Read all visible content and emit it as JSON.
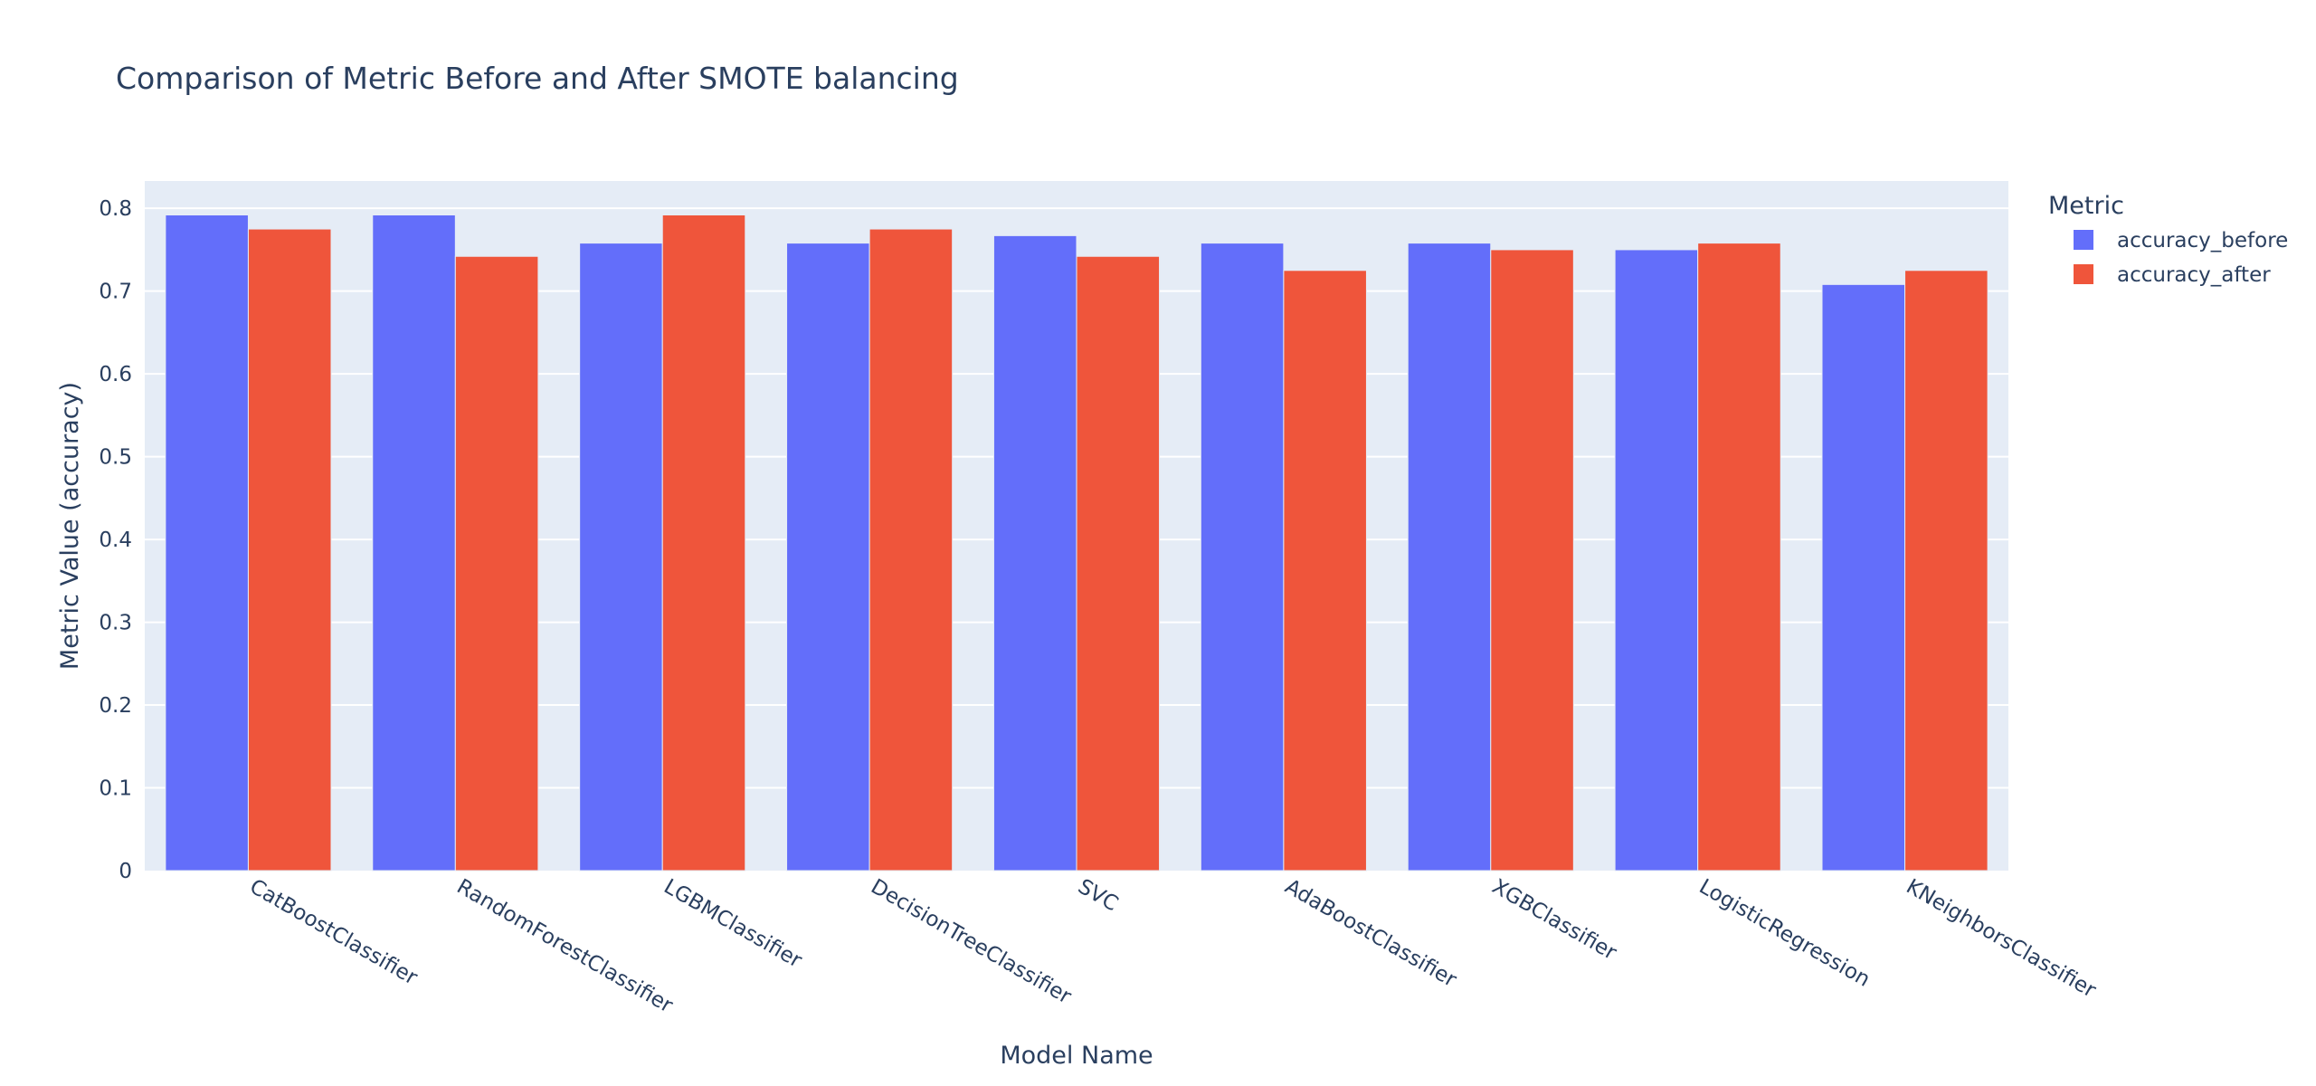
{
  "chart_data": {
    "type": "bar",
    "title": "Comparison of Metric Before and After SMOTE balancing",
    "xlabel": "Model Name",
    "ylabel": "Metric Value (accuracy)",
    "ylim": [
      0,
      0.833
    ],
    "yticks": [
      0,
      0.1,
      0.2,
      0.3,
      0.4,
      0.5,
      0.6,
      0.7,
      0.8
    ],
    "ytick_labels": [
      "0",
      "0.1",
      "0.2",
      "0.3",
      "0.4",
      "0.5",
      "0.6",
      "0.7",
      "0.8"
    ],
    "grid": true,
    "barmode": "group",
    "categories": [
      "CatBoostClassifier",
      "RandomForestClassifier",
      "LGBMClassifier",
      "DecisionTreeClassifier",
      "SVC",
      "AdaBoostClassifier",
      "XGBClassifier",
      "LogisticRegression",
      "KNeighborsClassifier"
    ],
    "legend": {
      "title": "Metric",
      "placement": "top-right"
    },
    "series": [
      {
        "name": "accuracy_before",
        "color": "#636efa",
        "values": [
          0.792,
          0.792,
          0.758,
          0.758,
          0.767,
          0.758,
          0.758,
          0.75,
          0.708
        ]
      },
      {
        "name": "accuracy_after",
        "color": "#ef553b",
        "values": [
          0.775,
          0.742,
          0.792,
          0.775,
          0.742,
          0.725,
          0.75,
          0.758,
          0.725
        ]
      }
    ],
    "colors": {
      "plot_background": "#e5ecf6",
      "gridline": "#ffffff",
      "text": "#2a3f5f"
    }
  }
}
